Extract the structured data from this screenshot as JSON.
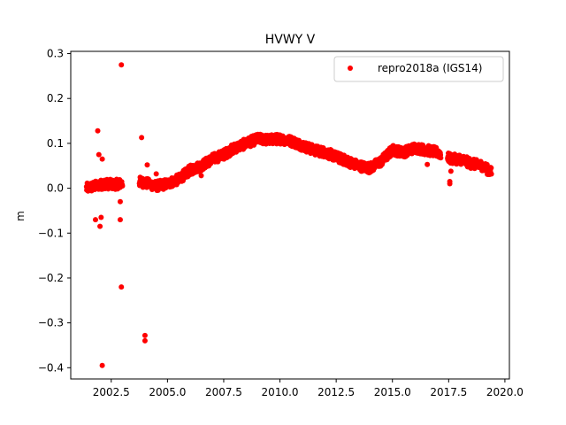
{
  "chart_data": {
    "type": "scatter",
    "title": "HVWY V",
    "xlabel": "",
    "ylabel": "m",
    "xlim": [
      2000.7,
      2020.2
    ],
    "ylim": [
      -0.425,
      0.305
    ],
    "xticks": [
      2002.5,
      2005.0,
      2007.5,
      2010.0,
      2012.5,
      2015.0,
      2017.5,
      2020.0
    ],
    "xtick_labels": [
      "2002.5",
      "2005.0",
      "2007.5",
      "2010.0",
      "2012.5",
      "2015.0",
      "2017.5",
      "2020.0"
    ],
    "yticks": [
      0.3,
      0.2,
      0.1,
      0.0,
      -0.1,
      -0.2,
      -0.3,
      -0.4
    ],
    "ytick_labels": [
      "0.3",
      "0.2",
      "0.1",
      "0.0",
      "−0.1",
      "−0.2",
      "−0.3",
      "−0.4"
    ],
    "grid": false,
    "legend_position": "top-right",
    "series": [
      {
        "name": "repro2018a (IGS14)",
        "color": "#ff0000",
        "marker": "circle",
        "trend": [
          [
            2001.4,
            0.0
          ],
          [
            2001.8,
            0.005
          ],
          [
            2002.2,
            0.01
          ],
          [
            2002.6,
            0.008
          ],
          [
            2002.9,
            0.01
          ],
          [
            2003.7,
            0.015
          ],
          [
            2004.0,
            0.012
          ],
          [
            2004.5,
            0.005
          ],
          [
            2005.0,
            0.01
          ],
          [
            2005.5,
            0.02
          ],
          [
            2006.0,
            0.04
          ],
          [
            2006.5,
            0.05
          ],
          [
            2007.0,
            0.065
          ],
          [
            2007.5,
            0.075
          ],
          [
            2008.0,
            0.09
          ],
          [
            2008.5,
            0.1
          ],
          [
            2009.0,
            0.11
          ],
          [
            2009.5,
            0.108
          ],
          [
            2010.0,
            0.11
          ],
          [
            2010.5,
            0.105
          ],
          [
            2011.0,
            0.095
          ],
          [
            2011.5,
            0.085
          ],
          [
            2012.0,
            0.08
          ],
          [
            2012.5,
            0.07
          ],
          [
            2013.0,
            0.06
          ],
          [
            2013.5,
            0.05
          ],
          [
            2014.0,
            0.045
          ],
          [
            2014.5,
            0.06
          ],
          [
            2015.0,
            0.085
          ],
          [
            2015.5,
            0.08
          ],
          [
            2016.0,
            0.09
          ],
          [
            2016.5,
            0.085
          ],
          [
            2017.0,
            0.08
          ],
          [
            2017.4,
            0.07
          ],
          [
            2017.6,
            0.065
          ],
          [
            2018.0,
            0.065
          ],
          [
            2018.5,
            0.055
          ],
          [
            2019.0,
            0.05
          ],
          [
            2019.4,
            0.035
          ]
        ],
        "gaps": [
          [
            2003.0,
            2003.75
          ],
          [
            2017.15,
            2017.45
          ]
        ],
        "outliers": [
          [
            2001.8,
            -0.07
          ],
          [
            2001.9,
            0.128
          ],
          [
            2001.95,
            0.075
          ],
          [
            2002.0,
            -0.085
          ],
          [
            2002.05,
            -0.065
          ],
          [
            2002.1,
            -0.395
          ],
          [
            2002.1,
            0.065
          ],
          [
            2002.95,
            0.275
          ],
          [
            2002.9,
            -0.07
          ],
          [
            2002.95,
            -0.22
          ],
          [
            2002.9,
            -0.03
          ],
          [
            2003.85,
            0.113
          ],
          [
            2004.0,
            -0.328
          ],
          [
            2004.0,
            -0.34
          ],
          [
            2004.1,
            0.052
          ],
          [
            2004.5,
            0.032
          ],
          [
            2006.5,
            0.028
          ],
          [
            2016.55,
            0.053
          ],
          [
            2017.55,
            0.015
          ],
          [
            2017.55,
            0.01
          ],
          [
            2017.6,
            0.038
          ]
        ]
      }
    ]
  }
}
